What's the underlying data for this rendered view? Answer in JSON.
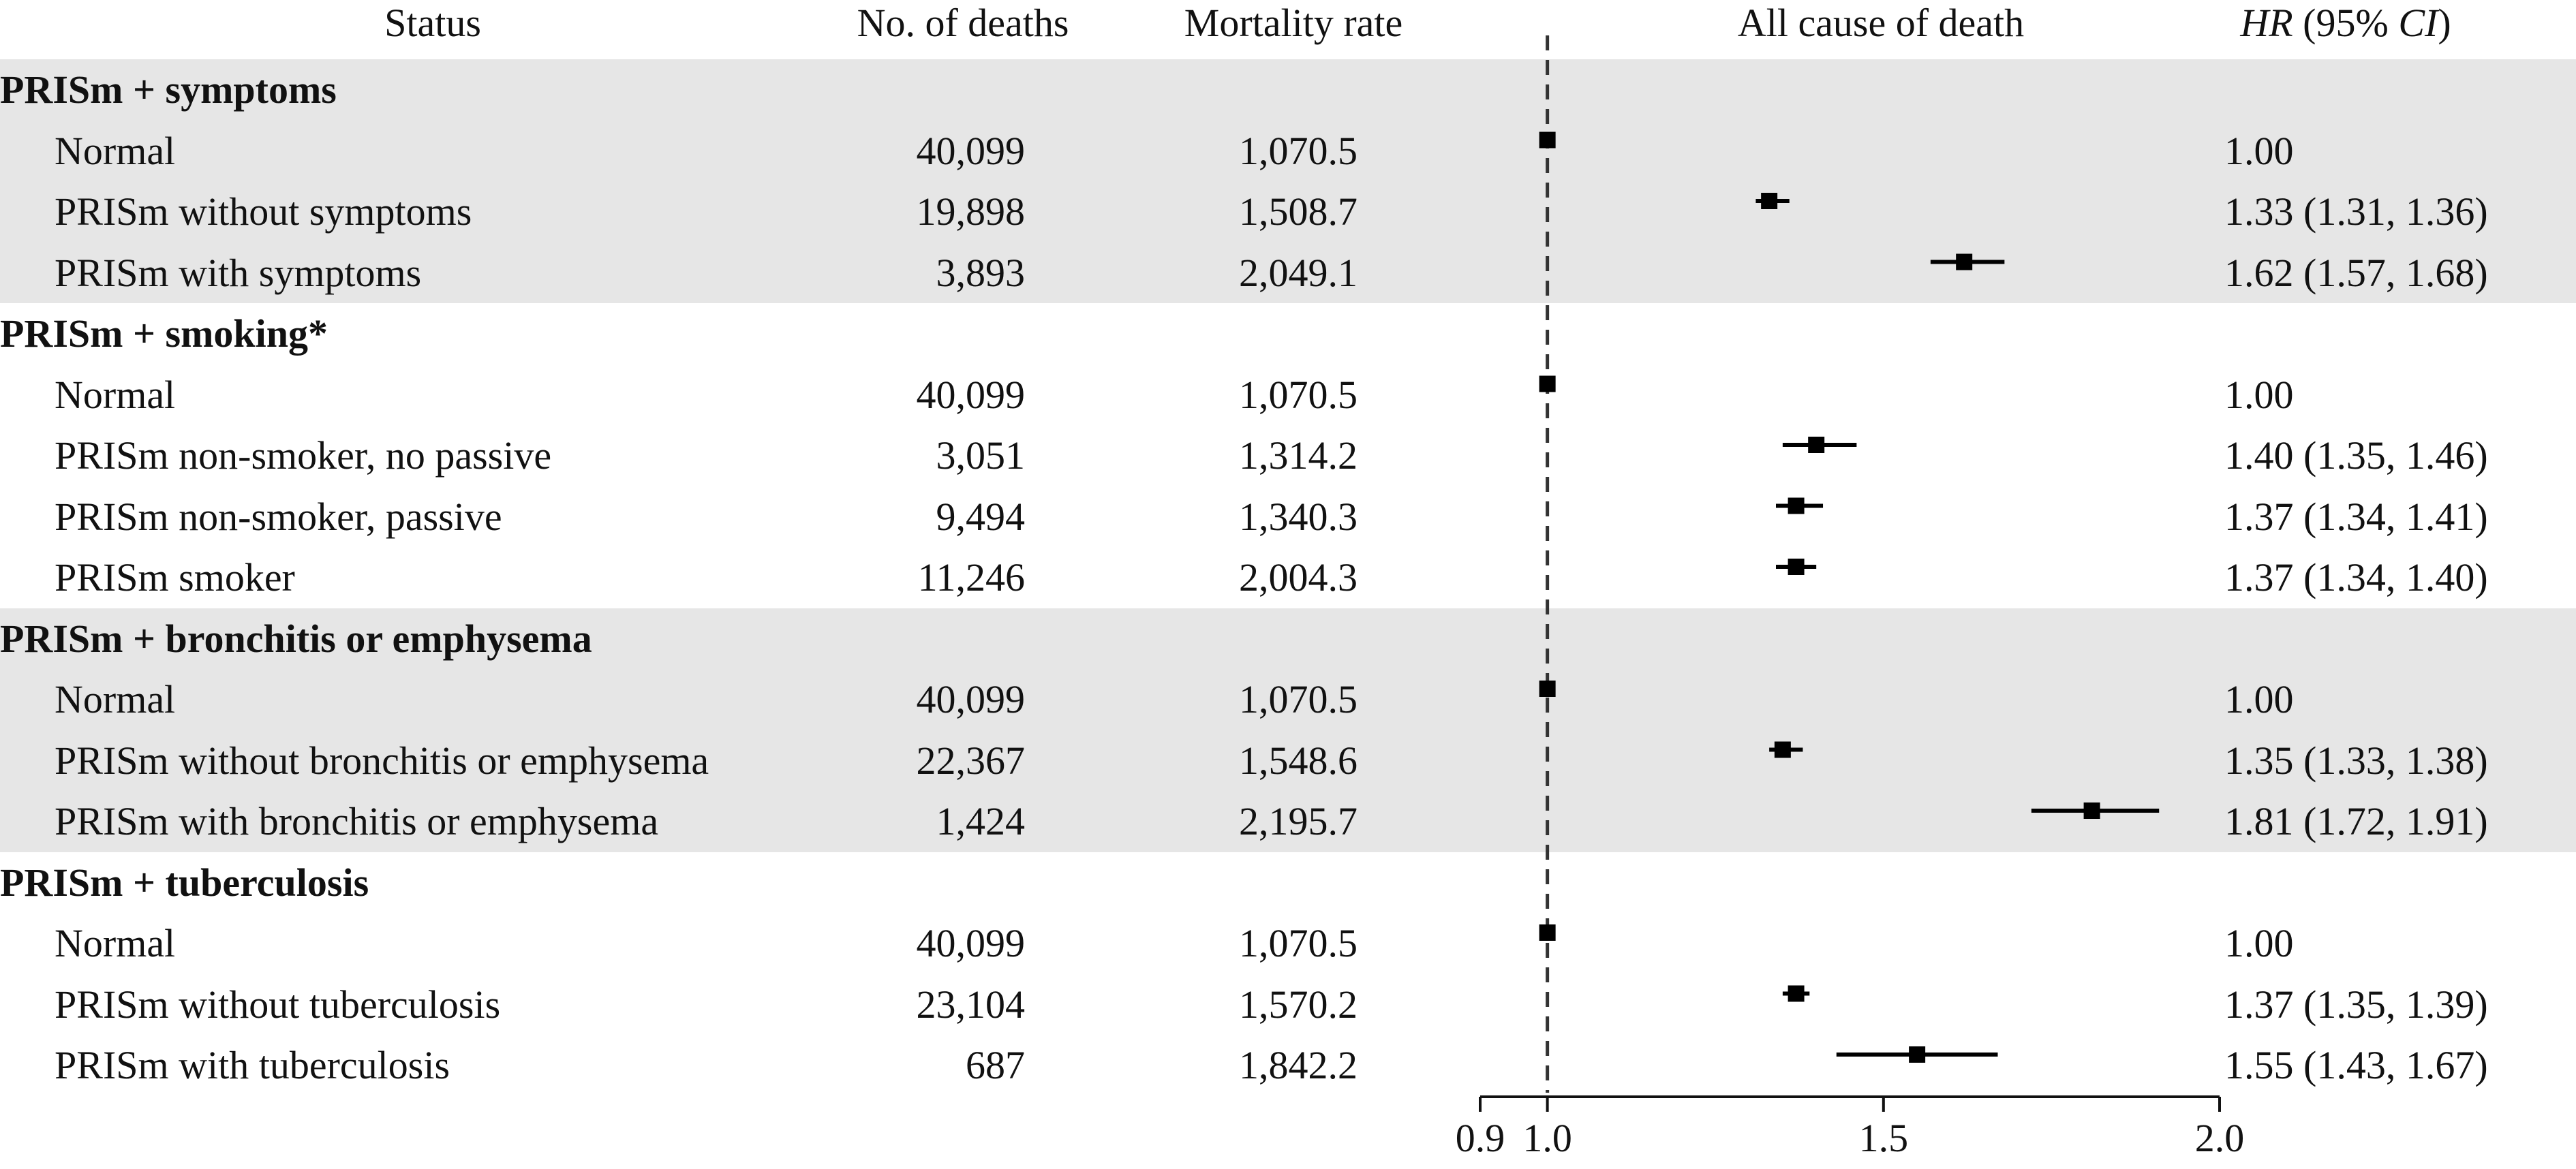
{
  "headers": {
    "status": "Status",
    "deaths": "No. of deaths",
    "mortality": "Mortality rate",
    "plot": "All cause of death",
    "hr_italic": "HR",
    "hr_rest": " (95% ",
    "ci_italic": "CI",
    "hr_close": ")"
  },
  "colors": {
    "band": "#e6e6e6",
    "marker": "#000000",
    "text": "#111111"
  },
  "chart_data": {
    "type": "forest",
    "title": "",
    "xlabel": "",
    "xlim": [
      0.9,
      2.0
    ],
    "xticks": [
      0.9,
      1.0,
      1.5,
      2.0
    ],
    "xtick_labels": [
      "0.9",
      "1.0",
      "1.5",
      "2.0"
    ],
    "reference_line": 1.0,
    "groups": [
      {
        "title": "PRISm + symptoms",
        "shaded": true,
        "rows": [
          {
            "label": "Normal",
            "deaths": "40,099",
            "rate": "1,070.5",
            "hr": 1.0,
            "lo": 1.0,
            "hi": 1.0,
            "text": "1.00"
          },
          {
            "label": "PRISm without symptoms",
            "deaths": "19,898",
            "rate": "1,508.7",
            "hr": 1.33,
            "lo": 1.31,
            "hi": 1.36,
            "text": "1.33 (1.31, 1.36)"
          },
          {
            "label": "PRISm with symptoms",
            "deaths": "3,893",
            "rate": "2,049.1",
            "hr": 1.62,
            "lo": 1.57,
            "hi": 1.68,
            "text": "1.62 (1.57, 1.68)"
          }
        ]
      },
      {
        "title": "PRISm + smoking*",
        "shaded": false,
        "rows": [
          {
            "label": "Normal",
            "deaths": "40,099",
            "rate": "1,070.5",
            "hr": 1.0,
            "lo": 1.0,
            "hi": 1.0,
            "text": "1.00"
          },
          {
            "label": "PRISm non-smoker, no passive",
            "deaths": "3,051",
            "rate": "1,314.2",
            "hr": 1.4,
            "lo": 1.35,
            "hi": 1.46,
            "text": "1.40 (1.35, 1.46)"
          },
          {
            "label": "PRISm non-smoker, passive",
            "deaths": "9,494",
            "rate": "1,340.3",
            "hr": 1.37,
            "lo": 1.34,
            "hi": 1.41,
            "text": "1.37 (1.34, 1.41)"
          },
          {
            "label": "PRISm smoker",
            "deaths": "11,246",
            "rate": "2,004.3",
            "hr": 1.37,
            "lo": 1.34,
            "hi": 1.4,
            "text": "1.37 (1.34, 1.40)"
          }
        ]
      },
      {
        "title": "PRISm + bronchitis or emphysema",
        "shaded": true,
        "rows": [
          {
            "label": "Normal",
            "deaths": "40,099",
            "rate": "1,070.5",
            "hr": 1.0,
            "lo": 1.0,
            "hi": 1.0,
            "text": "1.00"
          },
          {
            "label": "PRISm without bronchitis or emphysema",
            "deaths": "22,367",
            "rate": "1,548.6",
            "hr": 1.35,
            "lo": 1.33,
            "hi": 1.38,
            "text": "1.35 (1.33, 1.38)"
          },
          {
            "label": "PRISm with bronchitis or emphysema",
            "deaths": "1,424",
            "rate": "2,195.7",
            "hr": 1.81,
            "lo": 1.72,
            "hi": 1.91,
            "text": "1.81 (1.72, 1.91)"
          }
        ]
      },
      {
        "title": "PRISm + tuberculosis",
        "shaded": false,
        "rows": [
          {
            "label": "Normal",
            "deaths": "40,099",
            "rate": "1,070.5",
            "hr": 1.0,
            "lo": 1.0,
            "hi": 1.0,
            "text": "1.00"
          },
          {
            "label": "PRISm without tuberculosis",
            "deaths": "23,104",
            "rate": "1,570.2",
            "hr": 1.37,
            "lo": 1.35,
            "hi": 1.39,
            "text": "1.37 (1.35, 1.39)"
          },
          {
            "label": "PRISm with tuberculosis",
            "deaths": "687",
            "rate": "1,842.2",
            "hr": 1.55,
            "lo": 1.43,
            "hi": 1.67,
            "text": "1.55 (1.43, 1.67)"
          }
        ]
      }
    ]
  }
}
